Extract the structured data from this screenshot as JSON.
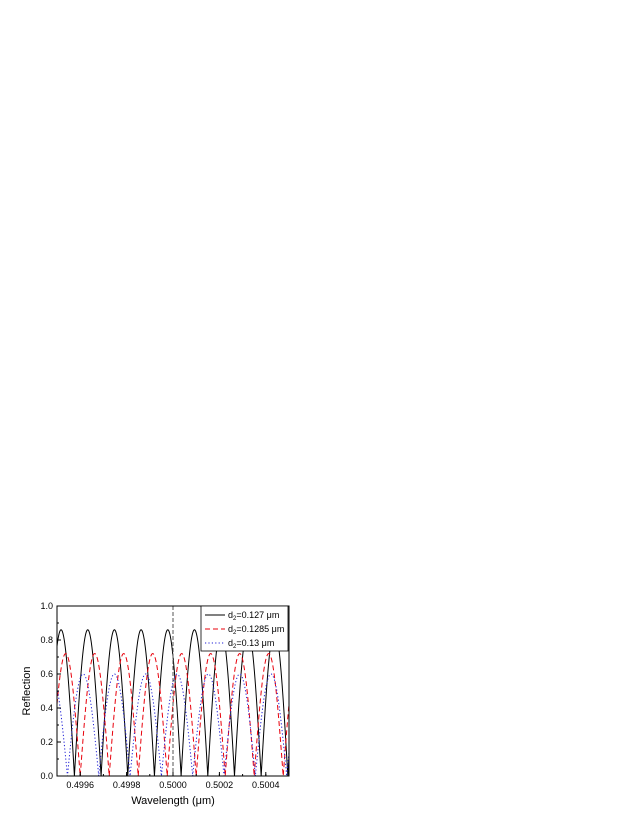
{
  "chart_data": {
    "type": "line",
    "title": "",
    "xlabel": "Wavelength (μm)",
    "ylabel": "Reflection",
    "xlim": [
      0.4995,
      0.5005
    ],
    "ylim": [
      0.0,
      1.0
    ],
    "x_ticks": [
      {
        "value": 0.4996,
        "label": "0.4996"
      },
      {
        "value": 0.4998,
        "label": "0.4998"
      },
      {
        "value": 0.5,
        "label": "0.5000"
      },
      {
        "value": 0.5002,
        "label": "0.5002"
      },
      {
        "value": 0.5004,
        "label": "0.5004"
      }
    ],
    "y_ticks": [
      {
        "value": 0.0,
        "label": "0.0"
      },
      {
        "value": 0.2,
        "label": "0.2"
      },
      {
        "value": 0.4,
        "label": "0.4"
      },
      {
        "value": 0.6,
        "label": "0.6"
      },
      {
        "value": 0.8,
        "label": "0.8"
      },
      {
        "value": 1.0,
        "label": "1.0"
      }
    ],
    "grid": false,
    "legend_position": "top-right",
    "reference_line": {
      "x": 0.5,
      "style": "dashed",
      "color": "#555555"
    },
    "series": [
      {
        "legend_prefix": "d",
        "legend_sub": "2",
        "legend_value": "=0.127 μm",
        "color": "#000000",
        "style": "solid",
        "period": 0.000115,
        "null_x": 0.49969,
        "peak": 0.86,
        "legend_order": 0
      },
      {
        "legend_prefix": "d",
        "legend_sub": "2",
        "legend_value": "=0.1285 μm",
        "color": "#e8000b",
        "style": "dashed",
        "period": 0.000125,
        "null_x": 0.4996,
        "peak": 0.72,
        "legend_order": 1
      },
      {
        "legend_prefix": "d",
        "legend_sub": "2",
        "legend_value": "=0.13 μm",
        "color": "#1f1fd6",
        "style": "dotted",
        "period": 0.000135,
        "null_x": 0.49968,
        "peak": 0.6,
        "legend_order": 2
      }
    ]
  }
}
